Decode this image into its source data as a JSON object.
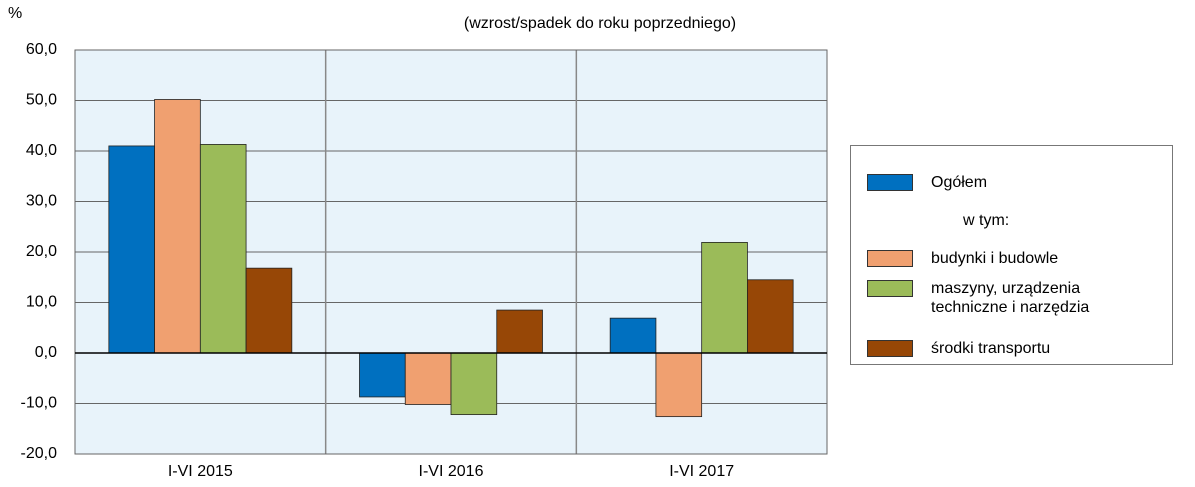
{
  "chart_data": {
    "type": "bar",
    "y_label": "%",
    "subtitle": "(wzrost/spadek do roku poprzedniego)",
    "categories": [
      "I-VI 2015",
      "I-VI 2016",
      "I-VI 2017"
    ],
    "series": [
      {
        "name": "Ogółem",
        "color": "#0070c0",
        "values": [
          41.0,
          -8.7,
          6.9
        ]
      },
      {
        "name": "budynki i budowle",
        "color": "#f0a070",
        "values": [
          50.2,
          -10.2,
          -12.6
        ]
      },
      {
        "name": "maszyny, urządzenia techniczne i narzędzia",
        "color": "#9bbb59",
        "values": [
          41.3,
          -12.2,
          21.9
        ]
      },
      {
        "name": "środki transportu",
        "color": "#974706",
        "values": [
          16.8,
          8.5,
          14.5
        ]
      }
    ],
    "legend_note": "w tym:",
    "ylim": [
      -20,
      60
    ],
    "yticks": [
      {
        "value": -20,
        "label": "-20,0"
      },
      {
        "value": -10,
        "label": "-10,0"
      },
      {
        "value": 0,
        "label": "0,0"
      },
      {
        "value": 10,
        "label": "10,0"
      },
      {
        "value": 20,
        "label": "20,0"
      },
      {
        "value": 30,
        "label": "30,0"
      },
      {
        "value": 40,
        "label": "40,0"
      },
      {
        "value": 50,
        "label": "50,0"
      },
      {
        "value": 60,
        "label": "60,0"
      }
    ],
    "grid": true,
    "legend": "right"
  }
}
